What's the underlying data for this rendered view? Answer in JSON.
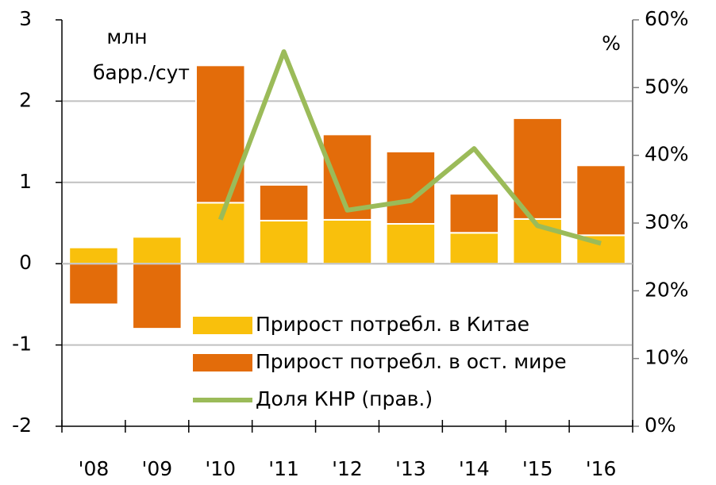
{
  "chart_data": {
    "type": "bar",
    "y_unit_label": [
      "млн",
      "барр./сут"
    ],
    "y2_unit_label": "%",
    "categories": [
      "'08",
      "'09",
      "'10",
      "'11",
      "'12",
      "'13",
      "'14",
      "'15",
      "'16"
    ],
    "series": [
      {
        "name": "Прирост потребл. в Китае",
        "color": "#f9c00c",
        "values": [
          0.2,
          0.33,
          0.75,
          0.53,
          0.54,
          0.49,
          0.38,
          0.55,
          0.35
        ]
      },
      {
        "name": "Прирост потребл. в ост. мире",
        "color": "#e36c0a",
        "values": [
          -0.5,
          -0.8,
          1.69,
          0.44,
          1.05,
          0.89,
          0.48,
          1.24,
          0.86
        ]
      },
      {
        "name": "Доля КНР (прав.)",
        "color": "#9bbb59",
        "type": "line",
        "axis": "y2",
        "values": [
          null,
          null,
          30.5,
          55.3,
          31.9,
          33.3,
          41.0,
          29.6,
          27.0
        ]
      }
    ],
    "ylim": [
      -2,
      3
    ],
    "yticks": [
      -2,
      -1,
      0,
      1,
      2,
      3
    ],
    "y2lim": [
      0,
      60
    ],
    "y2ticks": [
      {
        "value": 0,
        "label": "0%"
      },
      {
        "value": 10,
        "label": "10%"
      },
      {
        "value": 20,
        "label": "20%"
      },
      {
        "value": 30,
        "label": "30%"
      },
      {
        "value": 40,
        "label": "40%"
      },
      {
        "value": 50,
        "label": "50%"
      },
      {
        "value": 60,
        "label": "60%"
      }
    ],
    "grid": true
  }
}
